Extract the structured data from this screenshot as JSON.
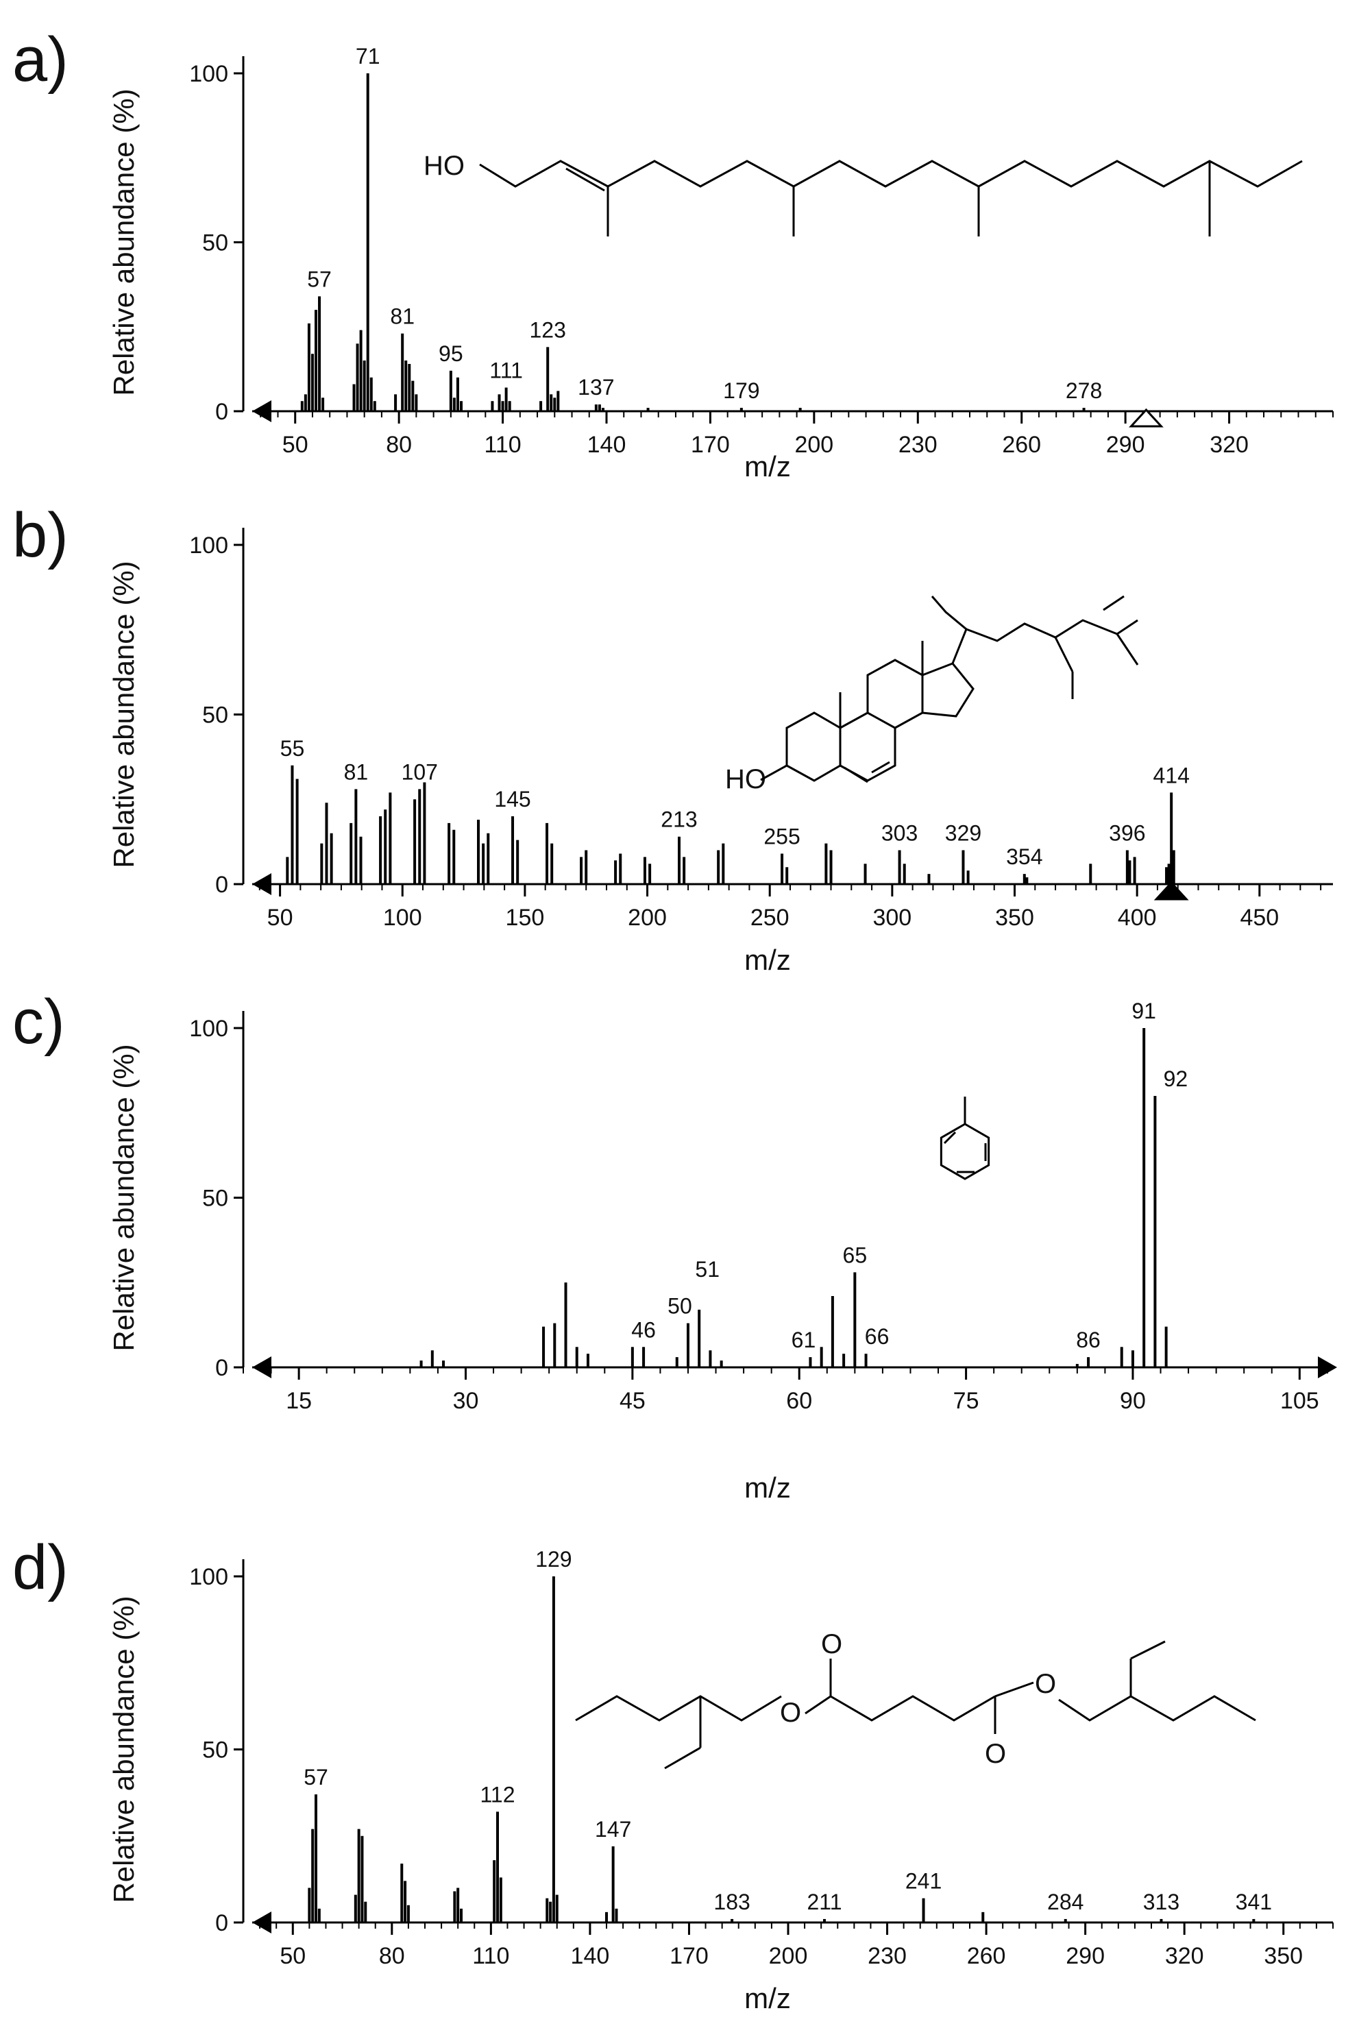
{
  "chart_data": [
    {
      "type": "bar",
      "panel": "a)",
      "ylabel": "Relative abundance (%)",
      "xlabel": "m/z",
      "ylim": [
        0,
        100
      ],
      "xlim": [
        35,
        350
      ],
      "xticks": [
        50,
        80,
        110,
        140,
        170,
        200,
        230,
        260,
        290,
        320
      ],
      "yticks": [
        0,
        50,
        100
      ],
      "x": [
        52,
        53,
        54,
        55,
        56,
        57,
        58,
        67,
        68,
        69,
        70,
        71,
        72,
        73,
        79,
        81,
        82,
        83,
        84,
        85,
        95,
        96,
        97,
        98,
        107,
        109,
        110,
        111,
        112,
        121,
        123,
        124,
        125,
        126,
        137,
        138,
        139,
        152,
        179,
        196,
        278
      ],
      "values": [
        3,
        5,
        26,
        17,
        30,
        34,
        4,
        8,
        20,
        24,
        15,
        100,
        10,
        3,
        5,
        23,
        15,
        14,
        9,
        5,
        12,
        4,
        10,
        3,
        3,
        5,
        3,
        7,
        3,
        3,
        19,
        5,
        4,
        6,
        2,
        2,
        1,
        1,
        1,
        1,
        1
      ],
      "labels": [
        {
          "x": 57,
          "text": "57"
        },
        {
          "x": 71,
          "text": "71"
        },
        {
          "x": 81,
          "text": "81"
        },
        {
          "x": 95,
          "text": "95"
        },
        {
          "x": 111,
          "text": "111"
        },
        {
          "x": 123,
          "text": "123"
        },
        {
          "x": 137,
          "text": "137"
        },
        {
          "x": 179,
          "text": "179"
        },
        {
          "x": 278,
          "text": "278"
        }
      ],
      "marker": {
        "x": 296,
        "style": "open-triangle"
      },
      "structure_label": "HO"
    },
    {
      "type": "bar",
      "panel": "b)",
      "ylabel": "Relative abundance (%)",
      "xlabel": "m/z",
      "ylim": [
        0,
        100
      ],
      "xlim": [
        35,
        480
      ],
      "xticks": [
        50,
        100,
        150,
        200,
        250,
        300,
        350,
        400,
        450
      ],
      "yticks": [
        0,
        50,
        100
      ],
      "x": [
        53,
        55,
        57,
        67,
        69,
        71,
        79,
        81,
        83,
        91,
        93,
        95,
        105,
        107,
        109,
        119,
        121,
        131,
        133,
        135,
        145,
        147,
        159,
        161,
        173,
        175,
        187,
        189,
        199,
        201,
        213,
        215,
        229,
        231,
        255,
        257,
        273,
        275,
        289,
        303,
        305,
        315,
        329,
        331,
        354,
        355,
        381,
        396,
        397,
        399,
        412,
        413,
        414,
        415
      ],
      "values": [
        8,
        35,
        31,
        12,
        24,
        15,
        18,
        28,
        14,
        20,
        22,
        27,
        25,
        28,
        30,
        18,
        16,
        19,
        12,
        15,
        20,
        13,
        18,
        12,
        8,
        10,
        7,
        9,
        8,
        6,
        14,
        8,
        10,
        12,
        9,
        5,
        12,
        10,
        6,
        10,
        6,
        3,
        10,
        4,
        3,
        2,
        6,
        10,
        7,
        8,
        5,
        6,
        27,
        10
      ],
      "labels": [
        {
          "x": 55,
          "text": "55"
        },
        {
          "x": 81,
          "text": "81"
        },
        {
          "x": 107,
          "text": "107"
        },
        {
          "x": 145,
          "text": "145"
        },
        {
          "x": 213,
          "text": "213"
        },
        {
          "x": 255,
          "text": "255"
        },
        {
          "x": 303,
          "text": "303"
        },
        {
          "x": 329,
          "text": "329"
        },
        {
          "x": 354,
          "text": "354"
        },
        {
          "x": 396,
          "text": "396"
        },
        {
          "x": 414,
          "text": "414"
        }
      ],
      "marker": {
        "x": 414,
        "style": "filled-triangle"
      },
      "structure_label": "HO"
    },
    {
      "type": "bar",
      "panel": "c)",
      "ylabel": "Relative abundance (%)",
      "xlabel": "m/z",
      "ylim": [
        0,
        100
      ],
      "xlim": [
        10,
        108
      ],
      "xticks": [
        15,
        30,
        45,
        60,
        75,
        90,
        105
      ],
      "yticks": [
        0,
        50,
        100
      ],
      "x": [
        26,
        27,
        28,
        37,
        38,
        39,
        40,
        41,
        45,
        46,
        49,
        50,
        51,
        52,
        53,
        61,
        62,
        63,
        64,
        65,
        66,
        85,
        86,
        89,
        90,
        91,
        92,
        93
      ],
      "values": [
        2,
        5,
        2,
        12,
        13,
        25,
        6,
        4,
        6,
        6,
        3,
        13,
        17,
        5,
        2,
        3,
        6,
        21,
        4,
        28,
        4,
        1,
        3,
        6,
        5,
        100,
        80,
        12
      ],
      "labels": [
        {
          "x": 46,
          "text": "46"
        },
        {
          "x": 50,
          "text": "50"
        },
        {
          "x": 51,
          "text": "51"
        },
        {
          "x": 61,
          "text": "61"
        },
        {
          "x": 65,
          "text": "65"
        },
        {
          "x": 66,
          "text": "66"
        },
        {
          "x": 86,
          "text": "86"
        },
        {
          "x": 91,
          "text": "91"
        },
        {
          "x": 92,
          "text": "92"
        }
      ]
    },
    {
      "type": "bar",
      "panel": "d)",
      "ylabel": "Relative abundance (%)",
      "xlabel": "m/z",
      "ylim": [
        0,
        100
      ],
      "xlim": [
        35,
        365
      ],
      "xticks": [
        50,
        80,
        110,
        140,
        170,
        200,
        230,
        260,
        290,
        320,
        350
      ],
      "yticks": [
        0,
        50,
        100
      ],
      "x": [
        55,
        56,
        57,
        58,
        69,
        70,
        71,
        72,
        83,
        84,
        85,
        99,
        100,
        101,
        111,
        112,
        113,
        127,
        128,
        129,
        130,
        145,
        147,
        148,
        183,
        211,
        241,
        259,
        284,
        313,
        341
      ],
      "values": [
        10,
        27,
        37,
        4,
        8,
        27,
        25,
        6,
        17,
        12,
        5,
        9,
        10,
        4,
        18,
        32,
        13,
        7,
        6,
        100,
        8,
        3,
        22,
        4,
        1,
        1,
        7,
        3,
        1,
        1,
        1
      ],
      "labels": [
        {
          "x": 57,
          "text": "57"
        },
        {
          "x": 112,
          "text": "112"
        },
        {
          "x": 129,
          "text": "129"
        },
        {
          "x": 147,
          "text": "147"
        },
        {
          "x": 183,
          "text": "183"
        },
        {
          "x": 211,
          "text": "211"
        },
        {
          "x": 241,
          "text": "241"
        },
        {
          "x": 284,
          "text": "284"
        },
        {
          "x": 313,
          "text": "313"
        },
        {
          "x": 341,
          "text": "341"
        }
      ],
      "structure_oxygen": "O"
    }
  ]
}
